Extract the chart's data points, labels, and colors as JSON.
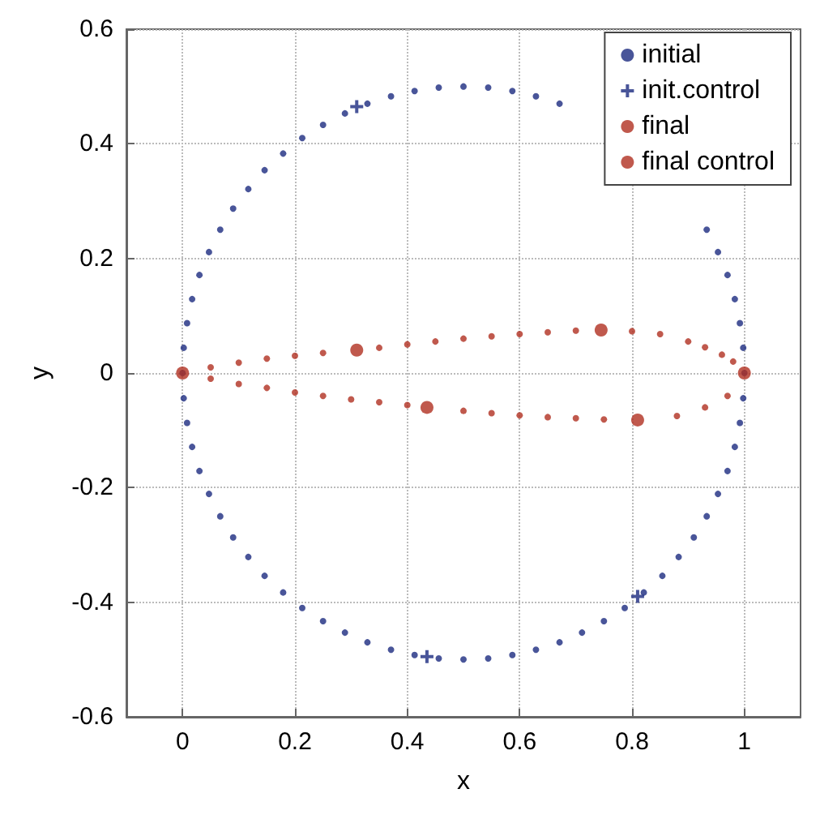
{
  "chart_data": {
    "type": "scatter",
    "xlabel": "x",
    "ylabel": "y",
    "xlim": [
      -0.1,
      1.1
    ],
    "ylim": [
      -0.6,
      0.6
    ],
    "xticks": [
      0,
      0.2,
      0.4,
      0.6,
      0.8,
      1
    ],
    "yticks": [
      -0.6,
      -0.4,
      -0.2,
      0,
      0.2,
      0.4,
      0.6
    ],
    "grid": true,
    "line_style": "dotted",
    "legend": "top right",
    "series": [
      {
        "name": "initial",
        "color": "#1c2a80",
        "marker": "circle",
        "x": [
          1,
          0.998,
          0.992,
          0.983,
          0.97,
          0.953,
          0.933,
          0.5,
          0.456,
          0.413,
          0.371,
          0.329,
          0.289,
          0.25,
          0.213,
          0.179,
          0.146,
          0.117,
          0.09,
          0.067,
          0.047,
          0.03,
          0.017,
          0.008,
          0.002,
          0,
          0.002,
          0.008,
          0.017,
          0.03,
          0.047,
          0.067,
          0.09,
          0.117,
          0.146,
          0.179,
          0.213,
          0.25,
          0.289,
          0.329,
          0.371,
          0.413,
          0.456,
          0.5,
          0.544,
          0.587,
          0.629,
          0.671,
          0.711,
          0.75,
          0.787,
          0.821,
          0.854,
          0.883,
          0.91,
          0.933,
          0.953,
          0.97,
          0.983,
          0.992,
          0.998,
          0.544,
          0.587,
          0.629,
          0.671
        ],
        "values": [
          0,
          0.044,
          0.087,
          0.129,
          0.171,
          0.211,
          0.25,
          0.5,
          0.498,
          0.492,
          0.483,
          0.47,
          0.453,
          0.433,
          0.41,
          0.383,
          0.354,
          0.321,
          0.287,
          0.25,
          0.211,
          0.171,
          0.129,
          0.087,
          0.044,
          0,
          -0.044,
          -0.087,
          -0.129,
          -0.171,
          -0.211,
          -0.25,
          -0.287,
          -0.321,
          -0.354,
          -0.383,
          -0.41,
          -0.433,
          -0.453,
          -0.47,
          -0.483,
          -0.492,
          -0.498,
          -0.5,
          -0.498,
          -0.492,
          -0.483,
          -0.47,
          -0.453,
          -0.433,
          -0.41,
          -0.383,
          -0.354,
          -0.321,
          -0.287,
          -0.25,
          -0.211,
          -0.171,
          -0.129,
          -0.087,
          -0.044,
          0.498,
          0.492,
          0.483,
          0.47
        ]
      },
      {
        "name": "init.control",
        "color": "#1c2a80",
        "marker": "cross",
        "x": [
          0.31,
          0.435,
          0.81
        ],
        "values": [
          0.465,
          -0.495,
          -0.39
        ]
      },
      {
        "name": "final",
        "color": "#b03020",
        "marker": "circle",
        "x": [
          0.05,
          0.1,
          0.15,
          0.2,
          0.25,
          0.35,
          0.4,
          0.45,
          0.5,
          0.55,
          0.6,
          0.65,
          0.7,
          0.8,
          0.85,
          0.9,
          0.93,
          0.96,
          0.98,
          0.97,
          0.93,
          0.88,
          0.75,
          0.7,
          0.65,
          0.6,
          0.55,
          0.5,
          0.4,
          0.35,
          0.3,
          0.25,
          0.2,
          0.15,
          0.1,
          0.05
        ],
        "values": [
          0.01,
          0.018,
          0.025,
          0.03,
          0.035,
          0.044,
          0.05,
          0.055,
          0.06,
          0.064,
          0.068,
          0.071,
          0.074,
          0.073,
          0.068,
          0.055,
          0.045,
          0.032,
          0.02,
          -0.04,
          -0.06,
          -0.075,
          -0.081,
          -0.079,
          -0.077,
          -0.074,
          -0.07,
          -0.066,
          -0.056,
          -0.051,
          -0.046,
          -0.04,
          -0.034,
          -0.026,
          -0.019,
          -0.01
        ]
      },
      {
        "name": "final control",
        "color": "#b03020",
        "marker": "circle",
        "x": [
          0,
          0.31,
          0.745,
          1,
          0.81,
          0.435
        ],
        "values": [
          0,
          0.04,
          0.075,
          0,
          -0.082,
          -0.06
        ]
      }
    ]
  }
}
